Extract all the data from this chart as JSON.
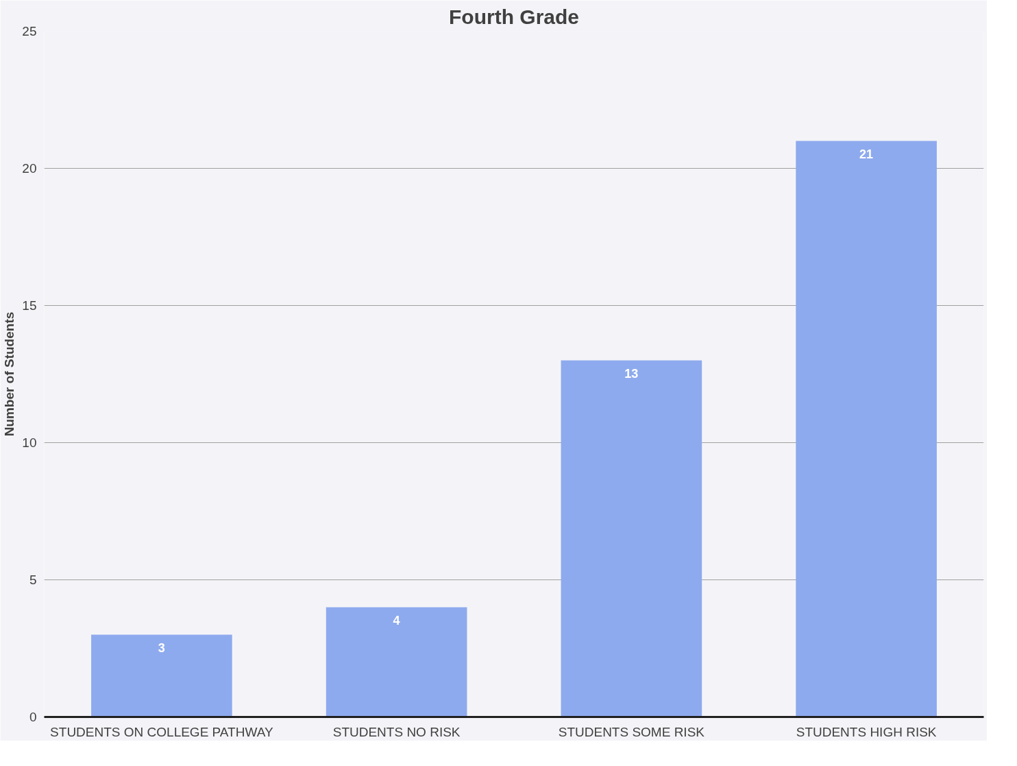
{
  "chart_data": {
    "type": "bar",
    "title": "Fourth Grade",
    "ylabel": "Number of Students",
    "categories": [
      "STUDENTS ON COLLEGE PATHWAY",
      "STUDENTS NO RISK",
      "STUDENTS SOME RISK",
      "STUDENTS HIGH RISK"
    ],
    "values": [
      3,
      4,
      13,
      21
    ],
    "color": "#8eaaee",
    "ylim": [
      0,
      25
    ],
    "yticks": [
      0,
      5,
      10,
      15,
      20,
      25
    ],
    "grid": "y",
    "data_labels": true
  }
}
